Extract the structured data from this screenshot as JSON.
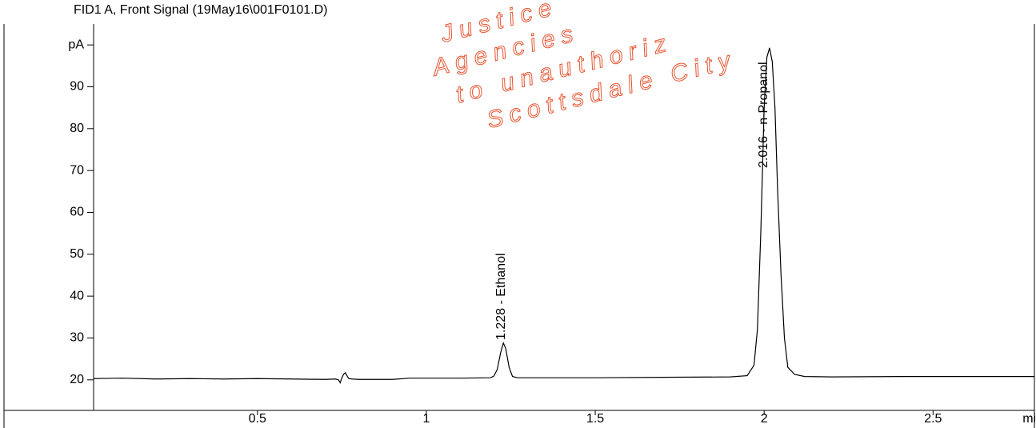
{
  "chart_data": {
    "type": "line",
    "title": "FID1 A, Front Signal (19May16\\001F0101.D)",
    "annotations": [
      "1.228 -  Ethanol",
      "2.016 -  n-Propanol"
    ],
    "watermark": [
      "Justice",
      "Agencies",
      "to unauthoriz",
      "Scottsdale City"
    ],
    "xlim": [
      0.015,
      2.8
    ],
    "ylim": [
      12.7,
      105
    ],
    "xticks": [
      0.5,
      1,
      1.5,
      2,
      2.5,
      {
        "value": 2.765,
        "label": "min"
      }
    ],
    "yticks": [
      20,
      30,
      40,
      50,
      60,
      70,
      80,
      90,
      {
        "value": 100,
        "label": "pA"
      }
    ],
    "series": [
      {
        "color": "#000000",
        "x": [
          0.015,
          0.1,
          0.2,
          0.3,
          0.4,
          0.5,
          0.6,
          0.7,
          0.73,
          0.74,
          0.745,
          0.75,
          0.755,
          0.76,
          0.765,
          0.77,
          0.78,
          0.8,
          0.9,
          0.95,
          1.0,
          1.1,
          1.19,
          1.2,
          1.21,
          1.22,
          1.228,
          1.235,
          1.245,
          1.255,
          1.27,
          1.3,
          1.5,
          1.7,
          1.9,
          1.95,
          1.97,
          1.98,
          1.99,
          2.0,
          2.008,
          2.016,
          2.024,
          2.032,
          2.04,
          2.05,
          2.06,
          2.07,
          2.09,
          2.12,
          2.2,
          2.4,
          2.6,
          2.8
        ],
        "values": [
          20.3,
          20.4,
          20.2,
          20.3,
          20.2,
          20.3,
          20.2,
          20.1,
          20.2,
          20.0,
          19.3,
          20.5,
          21.3,
          21.7,
          21.0,
          20.3,
          20.2,
          20.1,
          20.1,
          20.4,
          20.4,
          20.4,
          20.5,
          20.9,
          22.5,
          26.5,
          28.8,
          27.5,
          23.0,
          20.8,
          20.5,
          20.5,
          20.5,
          20.6,
          20.7,
          21.0,
          23.5,
          32,
          55,
          85,
          97,
          99.3,
          96,
          85,
          65,
          45,
          30,
          23,
          21.3,
          20.8,
          20.7,
          20.8,
          20.8,
          20.8
        ]
      }
    ]
  }
}
